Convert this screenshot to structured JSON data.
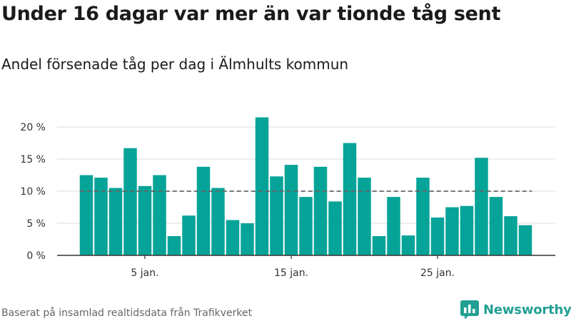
{
  "title": "Under 16 dagar var mer än var tionde tåg sent",
  "subtitle": "Andel försenade tåg per dag i Älmhults kommun",
  "footer": "Baserat på insamlad realtidsdata från Trafikverket",
  "brand": {
    "name": "Newsworthy",
    "icon": "bar-chart-icon",
    "color": "#22a093"
  },
  "chart_data": {
    "type": "bar",
    "x": [
      1,
      2,
      3,
      4,
      5,
      6,
      7,
      8,
      9,
      10,
      11,
      12,
      13,
      14,
      15,
      16,
      17,
      18,
      19,
      20,
      21,
      22,
      23,
      24,
      25,
      26,
      27,
      28,
      29,
      30,
      31
    ],
    "values": [
      12.5,
      12.1,
      10.5,
      16.7,
      10.8,
      12.5,
      3.0,
      6.2,
      13.8,
      10.5,
      5.5,
      5.0,
      21.5,
      12.3,
      14.1,
      9.1,
      13.8,
      8.4,
      17.5,
      12.1,
      3.0,
      9.1,
      3.1,
      12.1,
      5.9,
      7.5,
      7.7,
      15.2,
      9.1,
      6.1,
      4.7
    ],
    "x_ticks": [
      {
        "value": 5,
        "label": "5 jan."
      },
      {
        "value": 15,
        "label": "15 jan."
      },
      {
        "value": 25,
        "label": "25 jan."
      }
    ],
    "y_ticks": [
      {
        "value": 0,
        "label": "0 %"
      },
      {
        "value": 5,
        "label": "5 %"
      },
      {
        "value": 10,
        "label": "10 %"
      },
      {
        "value": 15,
        "label": "15 %"
      },
      {
        "value": 20,
        "label": "20 %"
      }
    ],
    "ylim": [
      0,
      22
    ],
    "reference_line": 10,
    "grid": true,
    "bar_color": "#06a398",
    "reference_color": "#666666"
  }
}
